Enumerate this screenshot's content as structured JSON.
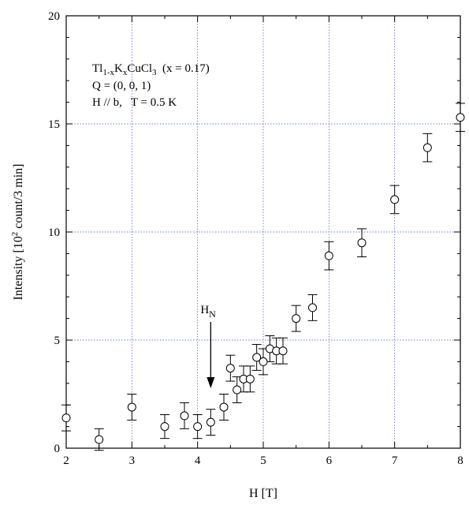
{
  "chart_data": {
    "type": "scatter",
    "xlabel": "H [T]",
    "ylabel_parts": {
      "pre": "Intensity [10",
      "sup": "2",
      "post": " count/3 min]"
    },
    "xlim": [
      2,
      8
    ],
    "ylim": [
      0,
      20
    ],
    "xticks": [
      2,
      3,
      4,
      5,
      6,
      7,
      8
    ],
    "yticks": [
      0,
      5,
      10,
      15,
      20
    ],
    "grid": true,
    "marker": "open-circle",
    "annotation": {
      "line1": {
        "a": "Tl",
        "a_sub": "1-x",
        "b": "K",
        "b_sub": "x",
        "c": "CuCl",
        "c_sub": "3",
        "d": "  (x = 0.17)"
      },
      "line2": "Q = (0, 0, 1)",
      "line3": "H // b,   T = 0.5 K"
    },
    "marker_label": {
      "main": "H",
      "sub": "N",
      "x": 4.2
    },
    "series": [
      {
        "points": [
          {
            "x": 2.0,
            "y": 1.4,
            "err": 0.6
          },
          {
            "x": 2.5,
            "y": 0.4,
            "err": 0.5
          },
          {
            "x": 3.0,
            "y": 1.9,
            "err": 0.6
          },
          {
            "x": 3.5,
            "y": 1.0,
            "err": 0.55
          },
          {
            "x": 3.8,
            "y": 1.5,
            "err": 0.6
          },
          {
            "x": 4.0,
            "y": 1.0,
            "err": 0.55
          },
          {
            "x": 4.2,
            "y": 1.2,
            "err": 0.6
          },
          {
            "x": 4.4,
            "y": 1.9,
            "err": 0.6
          },
          {
            "x": 4.5,
            "y": 3.7,
            "err": 0.6
          },
          {
            "x": 4.6,
            "y": 2.7,
            "err": 0.6
          },
          {
            "x": 4.7,
            "y": 3.2,
            "err": 0.6
          },
          {
            "x": 4.8,
            "y": 3.2,
            "err": 0.6
          },
          {
            "x": 4.9,
            "y": 4.2,
            "err": 0.6
          },
          {
            "x": 5.0,
            "y": 4.0,
            "err": 0.6
          },
          {
            "x": 5.1,
            "y": 4.6,
            "err": 0.6
          },
          {
            "x": 5.2,
            "y": 4.5,
            "err": 0.6
          },
          {
            "x": 5.3,
            "y": 4.5,
            "err": 0.6
          },
          {
            "x": 5.5,
            "y": 6.0,
            "err": 0.6
          },
          {
            "x": 5.75,
            "y": 6.5,
            "err": 0.6
          },
          {
            "x": 6.0,
            "y": 8.9,
            "err": 0.65
          },
          {
            "x": 6.5,
            "y": 9.5,
            "err": 0.65
          },
          {
            "x": 7.0,
            "y": 11.5,
            "err": 0.65
          },
          {
            "x": 7.5,
            "y": 13.9,
            "err": 0.65
          },
          {
            "x": 8.0,
            "y": 15.3,
            "err": 0.65
          }
        ]
      }
    ]
  }
}
